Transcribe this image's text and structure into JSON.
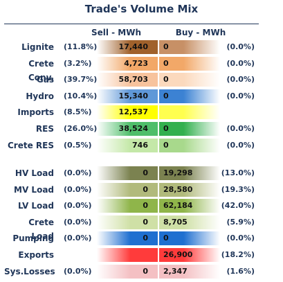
{
  "chart_data": {
    "type": "table",
    "title": "Trade's Volume Mix",
    "columns": [
      "Sell - MWh",
      "Buy - MWh"
    ],
    "rows": [
      {
        "label": "Lignite",
        "sell_pct": "(11.8%)",
        "sell": "17,440",
        "buy": "0",
        "buy_pct": "(0.0%)",
        "sell_color": "#a0612b",
        "buy_color": "#c79066"
      },
      {
        "label": "Crete Conv.",
        "sell_pct": "(3.2%)",
        "sell": "4,723",
        "buy": "0",
        "buy_pct": "(0.0%)",
        "sell_color": "#f2a868",
        "buy_color": "#f2a868"
      },
      {
        "label": "Gas",
        "sell_pct": "(39.7%)",
        "sell": "58,703",
        "buy": "0",
        "buy_pct": "(0.0%)",
        "sell_color": "#f7c39d",
        "buy_color": "#fbd9bd"
      },
      {
        "label": "Hydro",
        "sell_pct": "(10.4%)",
        "sell": "15,340",
        "buy": "0",
        "buy_pct": "(0.0%)",
        "sell_color": "#5f98d8",
        "buy_color": "#3c82d3"
      },
      {
        "label": "Imports",
        "sell_pct": "(8.5%)",
        "sell": "12,537",
        "buy": "",
        "buy_pct": "",
        "sell_color": "#ffff00",
        "buy_color": "#ffff4f"
      },
      {
        "label": "RES",
        "sell_pct": "(26.0%)",
        "sell": "38,524",
        "buy": "0",
        "buy_pct": "(0.0%)",
        "sell_color": "#4fbe6a",
        "buy_color": "#33b04e"
      },
      {
        "label": "Crete RES",
        "sell_pct": "(0.5%)",
        "sell": "746",
        "buy": "0",
        "buy_pct": "(0.0%)",
        "sell_color": "#c4e8a8",
        "buy_color": "#a8d98c"
      },
      {
        "label": "HV Load",
        "sell_pct": "(0.0%)",
        "sell": "0",
        "buy": "19,298",
        "buy_pct": "(13.0%)",
        "sell_color": "#7b8250",
        "buy_color": "#7b8250"
      },
      {
        "label": "MV Load",
        "sell_pct": "(0.0%)",
        "sell": "0",
        "buy": "28,580",
        "buy_pct": "(19.3%)",
        "sell_color": "#b1ba7c",
        "buy_color": "#b1ba7c"
      },
      {
        "label": "LV Load",
        "sell_pct": "(0.0%)",
        "sell": "0",
        "buy": "62,184",
        "buy_pct": "(42.0%)",
        "sell_color": "#8fb54a",
        "buy_color": "#8fb54a"
      },
      {
        "label": "Crete Load",
        "sell_pct": "(0.0%)",
        "sell": "0",
        "buy": "8,705",
        "buy_pct": "(5.9%)",
        "sell_color": "#cfe0a6",
        "buy_color": "#cfe0a6"
      },
      {
        "label": "Pumping",
        "sell_pct": "(0.0%)",
        "sell": "0",
        "buy": "0",
        "buy_pct": "(0.0%)",
        "sell_color": "#1f6fd0",
        "buy_color": "#1f6fd0"
      },
      {
        "label": "Exports",
        "sell_pct": "",
        "sell": "",
        "buy": "26,900",
        "buy_pct": "(18.2%)",
        "sell_color": "#ff3b3b",
        "buy_color": "#ff3b3b"
      },
      {
        "label": "Sys.Losses",
        "sell_pct": "(0.0%)",
        "sell": "0",
        "buy": "2,347",
        "buy_pct": "(1.6%)",
        "sell_color": "#f4c0c3",
        "buy_color": "#f4c0c3"
      }
    ]
  }
}
